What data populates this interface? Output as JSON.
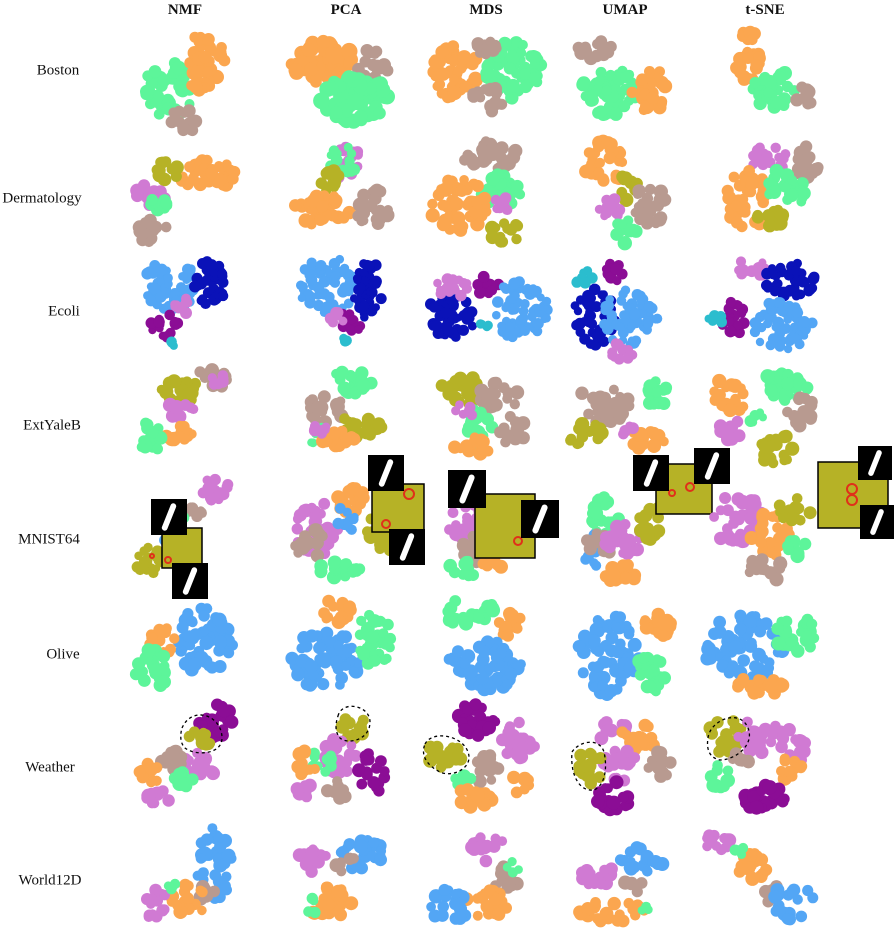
{
  "columns": [
    "NMF",
    "PCA",
    "MDS",
    "UMAP",
    "t-SNE"
  ],
  "rows": [
    "Boston",
    "Dermatology",
    "Ecoli",
    "ExtYaleB",
    "MNIST64",
    "Olive",
    "Weather",
    "World12D"
  ],
  "colors": {
    "green": "#5df59a",
    "orange": "#fba64f",
    "taupe": "#b89a90",
    "olive": "#b6b226",
    "pink": "#d07ad3",
    "skyblue": "#53a6f5",
    "navy": "#0a12b8",
    "purple": "#8b0d95",
    "cyan": "#2bbdce",
    "magenta": "#e86fc6",
    "highlight": "#e0301a"
  },
  "icons": {
    "digit_thumbnail": "digit-one-thumbnail-icon",
    "lasso": "dashed-lasso-outline"
  },
  "dataset_classes": {
    "Boston": [
      "green",
      "orange",
      "taupe"
    ],
    "Dermatology": [
      "orange",
      "olive",
      "pink",
      "green",
      "taupe",
      "magenta"
    ],
    "Ecoli": [
      "skyblue",
      "navy",
      "purple",
      "pink",
      "cyan"
    ],
    "ExtYaleB": [
      "olive",
      "taupe",
      "pink",
      "orange",
      "green"
    ],
    "MNIST64": [
      "pink",
      "orange",
      "taupe",
      "green",
      "skyblue",
      "olive"
    ],
    "Olive": [
      "skyblue",
      "orange",
      "green"
    ],
    "Weather": [
      "purple",
      "olive",
      "pink",
      "taupe",
      "orange",
      "green",
      "magenta"
    ],
    "World12D": [
      "skyblue",
      "taupe",
      "orange",
      "pink",
      "green"
    ]
  }
}
